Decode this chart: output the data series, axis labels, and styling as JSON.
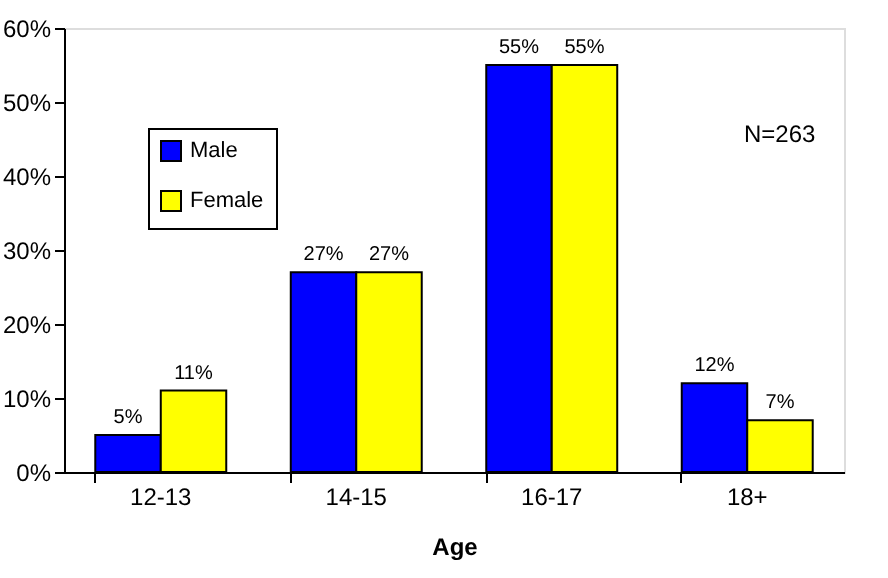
{
  "chart_data": {
    "type": "bar",
    "xlabel": "Age",
    "categories": [
      "12-13",
      "14-15",
      "16-17",
      "18+"
    ],
    "series": [
      {
        "name": "Male",
        "color": "#0000ff",
        "values": [
          5,
          27,
          55,
          12
        ],
        "value_labels": [
          "5%",
          "27%",
          "55%",
          "12%"
        ]
      },
      {
        "name": "Female",
        "color": "#ffff00",
        "values": [
          11,
          27,
          55,
          7
        ],
        "value_labels": [
          "11%",
          "27%",
          "55%",
          "7%"
        ]
      }
    ],
    "ylim": [
      0,
      60
    ],
    "yticks": [
      {
        "value": 0,
        "label": "0%"
      },
      {
        "value": 10,
        "label": "10%"
      },
      {
        "value": 20,
        "label": "20%"
      },
      {
        "value": 30,
        "label": "30%"
      },
      {
        "value": 40,
        "label": "40%"
      },
      {
        "value": 50,
        "label": "50%"
      },
      {
        "value": 60,
        "label": "60%"
      }
    ],
    "annotations": [
      "N=263"
    ],
    "legend": "top left",
    "grid": false
  }
}
